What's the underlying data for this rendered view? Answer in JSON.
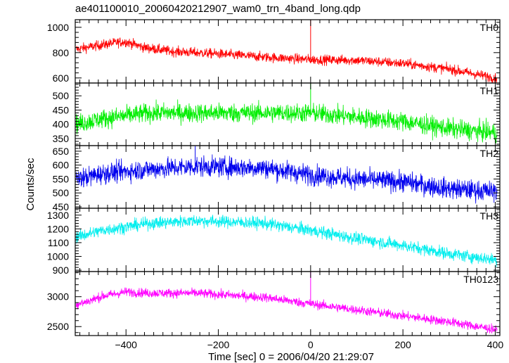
{
  "chart_data": {
    "type": "line",
    "title": "ae401100010_20060420212907_wam0_trn_4band_long.qdp",
    "xlabel": "Time [sec] 0 = 2006/04/20 21:29:07",
    "ylabel": "Counts/sec",
    "xlim": [
      -510,
      410
    ],
    "x_ticks": [
      -400,
      -200,
      0,
      200,
      400
    ],
    "panels": [
      {
        "name": "TH0",
        "color": "#ff0000",
        "ylim": [
          560,
          1060
        ],
        "yticks": [
          600,
          800,
          1000
        ],
        "trend": {
          "x": [
            -510,
            -470,
            -420,
            -400,
            -360,
            -300,
            -200,
            -100,
            0,
            100,
            200,
            300,
            400
          ],
          "y": [
            825,
            850,
            880,
            885,
            840,
            810,
            790,
            765,
            745,
            740,
            715,
            670,
            600
          ]
        },
        "noise": 28,
        "spikes": [
          {
            "x": 0,
            "y": 1060
          }
        ]
      },
      {
        "name": "TH1",
        "color": "#00ee00",
        "ylim": [
          325,
          545
        ],
        "yticks": [
          350,
          400,
          450,
          500
        ],
        "trend": {
          "x": [
            -510,
            -450,
            -350,
            -250,
            -100,
            0,
            100,
            200,
            300,
            400
          ],
          "y": [
            400,
            420,
            440,
            440,
            440,
            440,
            425,
            410,
            385,
            370
          ]
        },
        "noise": 24,
        "spikes": [
          {
            "x": 0,
            "y": 548
          }
        ]
      },
      {
        "name": "TH2",
        "color": "#0000ee",
        "ylim": [
          445,
          670
        ],
        "yticks": [
          450,
          500,
          550,
          600,
          650
        ],
        "trend": {
          "x": [
            -510,
            -450,
            -350,
            -250,
            -100,
            0,
            100,
            200,
            300,
            400
          ],
          "y": [
            548,
            570,
            585,
            595,
            590,
            565,
            550,
            540,
            515,
            505
          ]
        },
        "noise": 26,
        "spikes": [
          {
            "x": -250,
            "y": 668
          }
        ]
      },
      {
        "name": "TH3",
        "color": "#00eeee",
        "ylim": [
          890,
          1350
        ],
        "yticks": [
          900,
          1000,
          1100,
          1200,
          1300
        ],
        "trend": {
          "x": [
            -510,
            -450,
            -350,
            -250,
            -100,
            0,
            100,
            200,
            300,
            400
          ],
          "y": [
            1140,
            1190,
            1240,
            1260,
            1240,
            1190,
            1130,
            1080,
            1020,
            975
          ]
        },
        "noise": 32,
        "spikes": []
      },
      {
        "name": "TH0123",
        "color": "#ff00ff",
        "ylim": [
          2350,
          3420
        ],
        "yticks": [
          2500,
          3000
        ],
        "trend": {
          "x": [
            -510,
            -480,
            -450,
            -400,
            -350,
            -250,
            -100,
            0,
            100,
            200,
            300,
            400
          ],
          "y": [
            2860,
            2930,
            3010,
            3080,
            3060,
            3060,
            2990,
            2880,
            2780,
            2680,
            2580,
            2450
          ]
        },
        "noise": 55,
        "spikes": [
          {
            "x": 0,
            "y": 3420
          }
        ]
      }
    ]
  }
}
